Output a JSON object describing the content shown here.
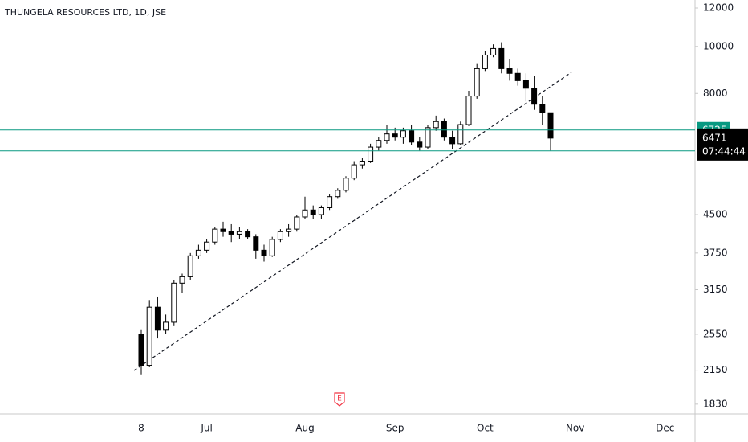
{
  "chart_data": {
    "type": "candlestick",
    "title": "THUNGELA RESOURCES LTD, 1D, JSE",
    "categories": [
      "8",
      null,
      null,
      null,
      null,
      null,
      null,
      null,
      "Jul",
      null,
      null,
      null,
      null,
      null,
      null,
      null,
      null,
      null,
      null,
      null,
      "Aug",
      null,
      null,
      null,
      null,
      null,
      null,
      null,
      null,
      null,
      null,
      "Sep",
      null,
      null,
      null,
      null,
      null,
      null,
      null,
      null,
      null,
      null,
      "Oct",
      null,
      null,
      null,
      null,
      null,
      null,
      null,
      null,
      null,
      null,
      "Nov",
      null,
      null,
      null,
      null,
      null,
      null,
      null,
      null,
      null,
      null,
      "Dec"
    ],
    "open": [
      2550,
      2200,
      2900,
      2600,
      2700,
      3250,
      3350,
      3700,
      3800,
      3950,
      4200,
      4150,
      4100,
      4150,
      4050,
      3800,
      3700,
      4000,
      4150,
      4200,
      4450,
      4600,
      4500,
      4650,
      4900,
      5050,
      5350,
      5700,
      5800,
      6200,
      6400,
      6600,
      6500,
      6700,
      6350,
      6200,
      6800,
      7000,
      6500,
      6300,
      6900,
      7900,
      9000,
      9600,
      9900,
      9000,
      8800,
      8500,
      8200,
      7600,
      7300,
      null,
      null,
      null,
      null,
      null,
      null,
      null,
      null,
      null,
      null,
      null,
      null,
      null,
      null
    ],
    "high": [
      2600,
      3000,
      3050,
      2800,
      3300,
      3400,
      3750,
      3900,
      4000,
      4250,
      4350,
      4300,
      4250,
      4200,
      4100,
      3900,
      4050,
      4200,
      4300,
      4500,
      4900,
      4700,
      4700,
      4950,
      5100,
      5400,
      5800,
      5900,
      6300,
      6500,
      6900,
      6800,
      6800,
      6900,
      6500,
      6900,
      7200,
      7100,
      6700,
      7000,
      8100,
      9200,
      9800,
      10100,
      10200,
      9400,
      9000,
      8800,
      8700,
      7900,
      7300,
      null,
      null,
      null,
      null,
      null,
      null,
      null,
      null,
      null,
      null,
      null,
      null,
      null,
      null
    ],
    "low": [
      2100,
      2180,
      2500,
      2550,
      2650,
      3100,
      3300,
      3650,
      3750,
      3900,
      4050,
      3950,
      4000,
      4000,
      3650,
      3600,
      3680,
      3950,
      4050,
      4150,
      4400,
      4400,
      4400,
      4600,
      4850,
      5000,
      5300,
      5600,
      5750,
      6100,
      6300,
      6400,
      6300,
      6250,
      6100,
      6150,
      6700,
      6400,
      6150,
      6250,
      6850,
      7800,
      8900,
      9500,
      8800,
      8500,
      8300,
      7700,
      7400,
      6900,
      6100,
      null,
      null,
      null,
      null,
      null,
      null,
      null,
      null,
      null,
      null,
      null,
      null,
      null,
      null
    ],
    "close": [
      2200,
      2900,
      2600,
      2700,
      3250,
      3350,
      3700,
      3800,
      3950,
      4200,
      4150,
      4100,
      4150,
      4050,
      3800,
      3700,
      4000,
      4150,
      4200,
      4450,
      4600,
      4500,
      4650,
      4900,
      5050,
      5350,
      5700,
      5800,
      6200,
      6400,
      6600,
      6500,
      6700,
      6350,
      6200,
      6800,
      7000,
      6500,
      6300,
      6900,
      7900,
      9000,
      9600,
      9900,
      9000,
      8800,
      8500,
      8200,
      7600,
      7300,
      6471,
      null,
      null,
      null,
      null,
      null,
      null,
      null,
      null,
      null,
      null,
      null,
      null,
      null,
      null
    ],
    "up_color": "#ffffff",
    "down_color": "#000000",
    "wick_color": "#000000",
    "log_scale": true,
    "ylim": [
      1747,
      12467
    ],
    "yticks": [
      1830,
      2150,
      2550,
      3150,
      3750,
      4500,
      8000,
      10000,
      12000
    ],
    "levels": [
      6725,
      6089
    ],
    "level_color": "#089981",
    "last_price": 6471,
    "countdown": "07:44:44",
    "earnings_marker": "E"
  }
}
